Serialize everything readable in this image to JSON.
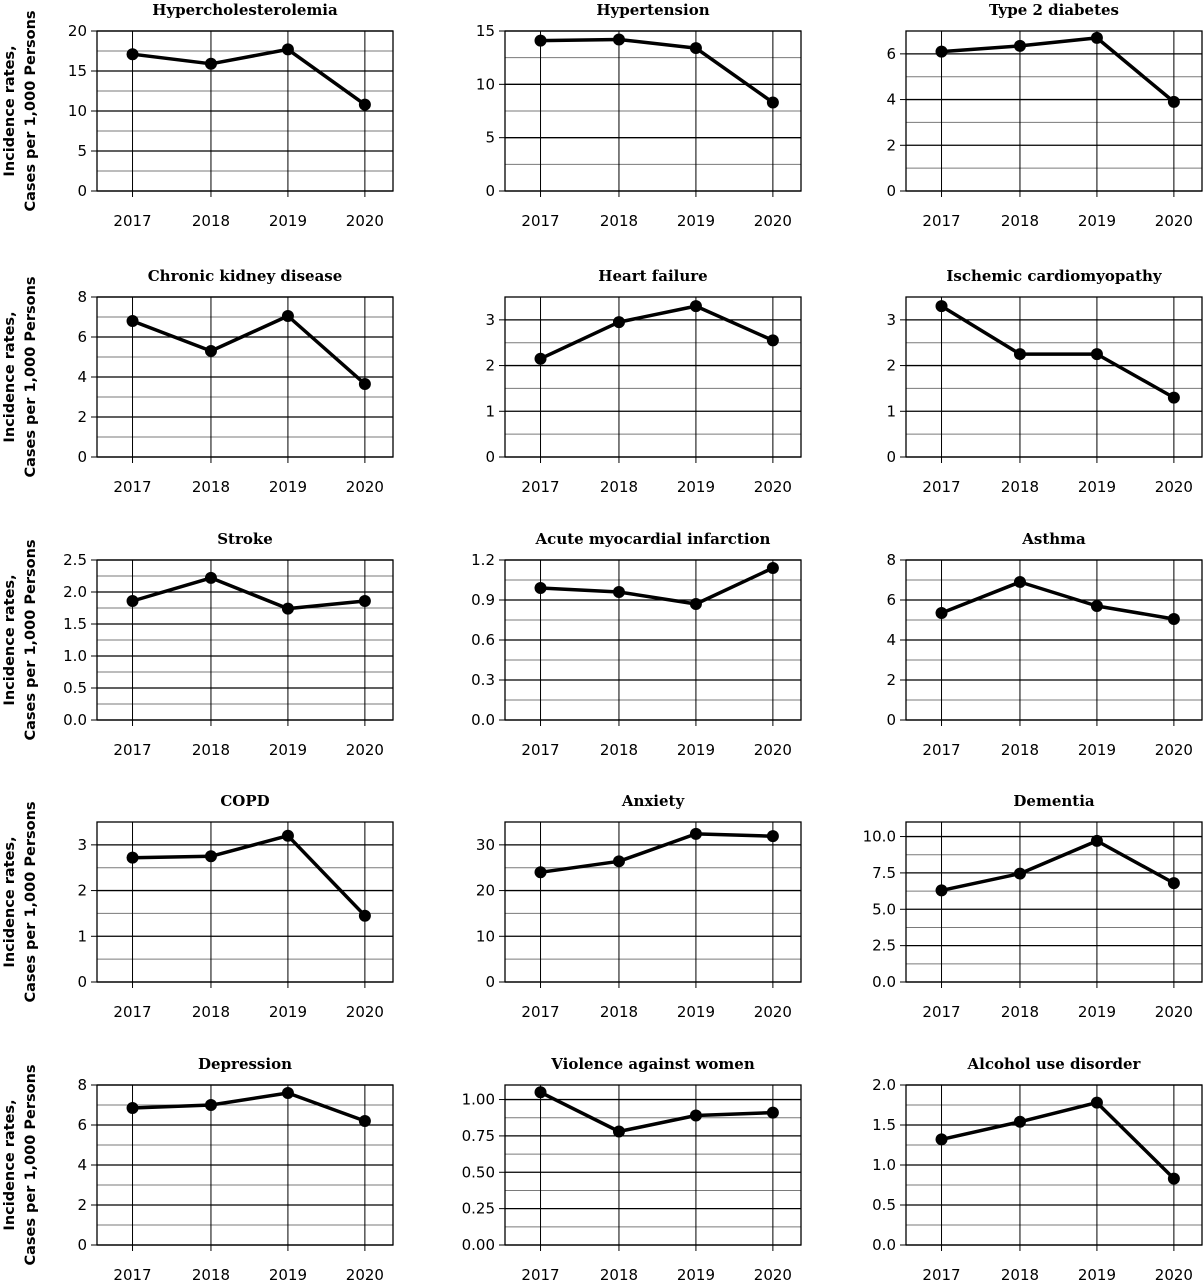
{
  "figure": {
    "ylabel_lines": [
      "Incidence rates,",
      "Cases per 1,000 Persons"
    ]
  },
  "chart_data": [
    {
      "type": "line",
      "title": "Hypercholesterolemia",
      "categories": [
        "2017",
        "2018",
        "2019",
        "2020"
      ],
      "values": [
        17.1,
        15.9,
        17.7,
        10.8
      ],
      "ylim": [
        0,
        20
      ],
      "yticks": [
        "0",
        "5",
        "10",
        "15",
        "20"
      ],
      "ytick_values": [
        0,
        5,
        10,
        15,
        20
      ],
      "minor_grid_step": 2.5,
      "grid": true
    },
    {
      "type": "line",
      "title": "Hypertension",
      "categories": [
        "2017",
        "2018",
        "2019",
        "2020"
      ],
      "values": [
        14.1,
        14.2,
        13.4,
        8.3
      ],
      "ylim": [
        0,
        15
      ],
      "yticks": [
        "0",
        "5",
        "10",
        "15"
      ],
      "ytick_values": [
        0,
        5,
        10,
        15
      ],
      "minor_grid_step": 2.5,
      "grid": true
    },
    {
      "type": "line",
      "title": "Type 2 diabetes",
      "categories": [
        "2017",
        "2018",
        "2019",
        "2020"
      ],
      "values": [
        6.1,
        6.35,
        6.7,
        3.9
      ],
      "ylim": [
        0,
        7
      ],
      "yticks": [
        "0",
        "2",
        "4",
        "6"
      ],
      "ytick_values": [
        0,
        2,
        4,
        6
      ],
      "minor_grid_step": 1,
      "grid": true
    },
    {
      "type": "line",
      "title": "Chronic kidney disease",
      "categories": [
        "2017",
        "2018",
        "2019",
        "2020"
      ],
      "values": [
        6.8,
        5.3,
        7.05,
        3.65
      ],
      "ylim": [
        0,
        8
      ],
      "yticks": [
        "0",
        "2",
        "4",
        "6",
        "8"
      ],
      "ytick_values": [
        0,
        2,
        4,
        6,
        8
      ],
      "minor_grid_step": 1,
      "grid": true
    },
    {
      "type": "line",
      "title": "Heart failure",
      "categories": [
        "2017",
        "2018",
        "2019",
        "2020"
      ],
      "values": [
        2.15,
        2.95,
        3.3,
        2.55
      ],
      "ylim": [
        0,
        3.5
      ],
      "yticks": [
        "0",
        "1",
        "2",
        "3"
      ],
      "ytick_values": [
        0,
        1,
        2,
        3
      ],
      "minor_grid_step": 0.5,
      "grid": true
    },
    {
      "type": "line",
      "title": "Ischemic cardiomyopathy",
      "categories": [
        "2017",
        "2018",
        "2019",
        "2020"
      ],
      "values": [
        3.3,
        2.25,
        2.25,
        1.3
      ],
      "ylim": [
        0,
        3.5
      ],
      "yticks": [
        "0",
        "1",
        "2",
        "3"
      ],
      "ytick_values": [
        0,
        1,
        2,
        3
      ],
      "minor_grid_step": 0.5,
      "grid": true
    },
    {
      "type": "line",
      "title": "Stroke",
      "categories": [
        "2017",
        "2018",
        "2019",
        "2020"
      ],
      "values": [
        1.86,
        2.22,
        1.74,
        1.86
      ],
      "ylim": [
        0,
        2.5
      ],
      "yticks": [
        "0.0",
        "0.5",
        "1.0",
        "1.5",
        "2.0",
        "2.5"
      ],
      "ytick_values": [
        0,
        0.5,
        1,
        1.5,
        2,
        2.5
      ],
      "minor_grid_step": 0.25,
      "grid": true
    },
    {
      "type": "line",
      "title": "Acute myocardial infarction",
      "categories": [
        "2017",
        "2018",
        "2019",
        "2020"
      ],
      "values": [
        0.99,
        0.96,
        0.87,
        1.14
      ],
      "ylim": [
        0,
        1.2
      ],
      "yticks": [
        "0.0",
        "0.3",
        "0.6",
        "0.9",
        "1.2"
      ],
      "ytick_values": [
        0,
        0.3,
        0.6,
        0.9,
        1.2
      ],
      "minor_grid_step": 0.15,
      "grid": true
    },
    {
      "type": "line",
      "title": "Asthma",
      "categories": [
        "2017",
        "2018",
        "2019",
        "2020"
      ],
      "values": [
        5.35,
        6.9,
        5.7,
        5.05
      ],
      "ylim": [
        0,
        8
      ],
      "yticks": [
        "0",
        "2",
        "4",
        "6",
        "8"
      ],
      "ytick_values": [
        0,
        2,
        4,
        6,
        8
      ],
      "minor_grid_step": 1,
      "grid": true
    },
    {
      "type": "line",
      "title": "COPD",
      "categories": [
        "2017",
        "2018",
        "2019",
        "2020"
      ],
      "values": [
        2.72,
        2.75,
        3.2,
        1.45
      ],
      "ylim": [
        0,
        3.5
      ],
      "yticks": [
        "0",
        "1",
        "2",
        "3"
      ],
      "ytick_values": [
        0,
        1,
        2,
        3
      ],
      "minor_grid_step": 0.5,
      "grid": true
    },
    {
      "type": "line",
      "title": "Anxiety",
      "categories": [
        "2017",
        "2018",
        "2019",
        "2020"
      ],
      "values": [
        24.0,
        26.4,
        32.4,
        31.9
      ],
      "ylim": [
        0,
        35
      ],
      "yticks": [
        "0",
        "10",
        "20",
        "30"
      ],
      "ytick_values": [
        0,
        10,
        20,
        30
      ],
      "minor_grid_step": 5,
      "grid": true
    },
    {
      "type": "line",
      "title": "Dementia",
      "categories": [
        "2017",
        "2018",
        "2019",
        "2020"
      ],
      "values": [
        6.3,
        7.45,
        9.7,
        6.8
      ],
      "ylim": [
        0,
        11
      ],
      "yticks": [
        "0.0",
        "2.5",
        "5.0",
        "7.5",
        "10.0"
      ],
      "ytick_values": [
        0,
        2.5,
        5,
        7.5,
        10
      ],
      "minor_grid_step": 1.25,
      "grid": true
    },
    {
      "type": "line",
      "title": "Depression",
      "categories": [
        "2017",
        "2018",
        "2019",
        "2020"
      ],
      "values": [
        6.85,
        7.0,
        7.6,
        6.2
      ],
      "ylim": [
        0,
        8
      ],
      "yticks": [
        "0",
        "2",
        "4",
        "6",
        "8"
      ],
      "ytick_values": [
        0,
        2,
        4,
        6,
        8
      ],
      "minor_grid_step": 1,
      "grid": true
    },
    {
      "type": "line",
      "title": "Violence against women",
      "categories": [
        "2017",
        "2018",
        "2019",
        "2020"
      ],
      "values": [
        1.05,
        0.78,
        0.89,
        0.91
      ],
      "ylim": [
        0,
        1.1
      ],
      "yticks": [
        "0.00",
        "0.25",
        "0.50",
        "0.75",
        "1.00"
      ],
      "ytick_values": [
        0,
        0.25,
        0.5,
        0.75,
        1.0
      ],
      "minor_grid_step": 0.125,
      "grid": true
    },
    {
      "type": "line",
      "title": "Alcohol use disorder",
      "categories": [
        "2017",
        "2018",
        "2019",
        "2020"
      ],
      "values": [
        1.32,
        1.54,
        1.78,
        0.83
      ],
      "ylim": [
        0,
        2.0
      ],
      "yticks": [
        "0.0",
        "0.5",
        "1.0",
        "1.5",
        "2.0"
      ],
      "ytick_values": [
        0,
        0.5,
        1,
        1.5,
        2
      ],
      "minor_grid_step": 0.25,
      "grid": true
    }
  ]
}
